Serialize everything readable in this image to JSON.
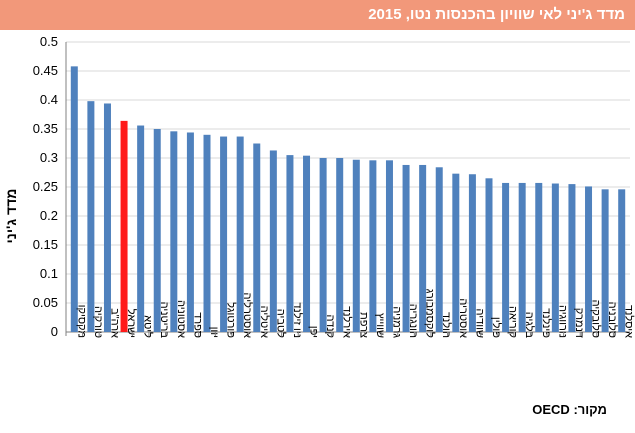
{
  "header": {
    "title": "מדד ג'יני לאי שוויון בהכנסות נטו, 2015"
  },
  "footer": {
    "source": "מקור: OECD"
  },
  "colors": {
    "bar": "#4f81bd",
    "highlight": "#ff1a1a",
    "title_bg": "#f2987a",
    "grid": "#d9d9d9"
  },
  "chart_data": {
    "type": "bar",
    "title": "מדד ג'יני לאי שוויון בהכנסות נטו, 2015",
    "xlabel": "",
    "ylabel": "מדד ג'יני",
    "ylim": [
      0,
      0.5
    ],
    "yticks": [
      "0",
      "0.05",
      "0.1",
      "0.15",
      "0.2",
      "0.25",
      "0.3",
      "0.35",
      "0.4",
      "0.45",
      "0.5"
    ],
    "highlight_index": 3,
    "categories": [
      "מקסיקו",
      "טורקיה",
      "ארה\"ב",
      "ישראל",
      "ליטא",
      "בריטניה",
      "אסטוניה",
      "ספרד",
      "יוון",
      "פורטוגל",
      "אוסטרליה",
      "איטליה",
      "לטביה",
      "ניו זילנד",
      "יפן",
      "קנדה",
      "אירלנד",
      "צרפת",
      "שווייץ",
      "גרמניה",
      "הונגריה",
      "לוקסמבורג",
      "הולנד",
      "אוסטריה",
      "שוודיה",
      "פולין",
      "קוריאה",
      "בלגיה",
      "פינלנד",
      "נורווגיה",
      "דנמרק",
      "סלובקיה",
      "סלובניה",
      "איסלנד"
    ],
    "values": [
      0.458,
      0.398,
      0.394,
      0.364,
      0.356,
      0.35,
      0.346,
      0.344,
      0.34,
      0.337,
      0.337,
      0.325,
      0.313,
      0.305,
      0.304,
      0.3,
      0.3,
      0.297,
      0.296,
      0.296,
      0.288,
      0.288,
      0.284,
      0.273,
      0.272,
      0.265,
      0.257,
      0.257,
      0.257,
      0.256,
      0.255,
      0.251,
      0.246,
      0.246
    ]
  }
}
